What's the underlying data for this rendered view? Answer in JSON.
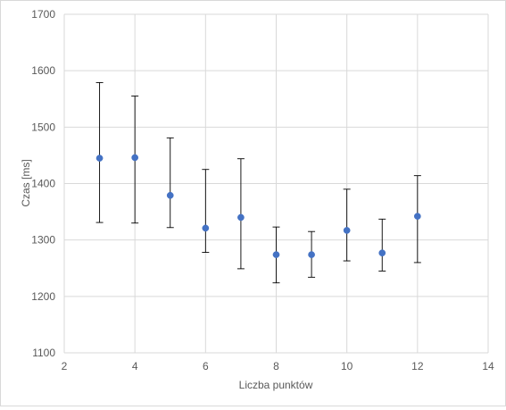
{
  "chart_data": {
    "type": "scatter",
    "title": "",
    "xlabel": "Liczba punktów",
    "ylabel": "Czas [ms]",
    "xlim": [
      2,
      14
    ],
    "ylim": [
      1100,
      1700
    ],
    "x_ticks": [
      2,
      4,
      6,
      8,
      10,
      12,
      14
    ],
    "y_ticks": [
      1100,
      1200,
      1300,
      1400,
      1500,
      1600,
      1700
    ],
    "grid": true,
    "legend": "none",
    "series": [
      {
        "color": "#4472c4",
        "error_bar_color": "#000000",
        "points": [
          {
            "x": 3,
            "y": 1445,
            "low": 1331,
            "high": 1579
          },
          {
            "x": 4,
            "y": 1446,
            "low": 1330,
            "high": 1555
          },
          {
            "x": 5,
            "y": 1379,
            "low": 1322,
            "high": 1481
          },
          {
            "x": 6,
            "y": 1321,
            "low": 1278,
            "high": 1425
          },
          {
            "x": 7,
            "y": 1340,
            "low": 1249,
            "high": 1444
          },
          {
            "x": 8,
            "y": 1274,
            "low": 1224,
            "high": 1323
          },
          {
            "x": 9,
            "y": 1274,
            "low": 1234,
            "high": 1315
          },
          {
            "x": 10,
            "y": 1317,
            "low": 1263,
            "high": 1390
          },
          {
            "x": 11,
            "y": 1277,
            "low": 1245,
            "high": 1337
          },
          {
            "x": 12,
            "y": 1342,
            "low": 1260,
            "high": 1414
          }
        ]
      }
    ]
  }
}
